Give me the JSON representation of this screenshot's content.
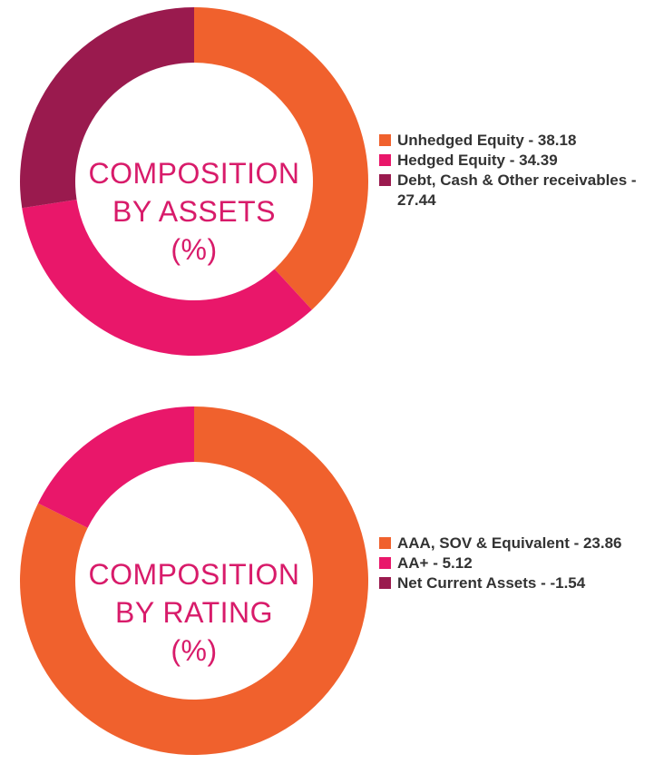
{
  "chart_data": [
    {
      "type": "pie",
      "title": "COMPOSITION BY ASSETS (%)",
      "title_lines": [
        "COMPOSITION",
        "BY ASSETS",
        "(%)"
      ],
      "categories": [
        "Unhedged Equity",
        "Hedged Equity",
        "Debt, Cash & Other receivables"
      ],
      "values": [
        38.18,
        34.39,
        27.44
      ],
      "legend_labels": [
        "Unhedged Equity - 38.18",
        "Hedged Equity - 34.39",
        "Debt, Cash & Other receivables - 27.44"
      ],
      "colors": [
        "#f0612d",
        "#e9176a",
        "#9a1a4e"
      ],
      "legend_position": "right"
    },
    {
      "type": "pie",
      "title": "COMPOSITION BY RATING (%)",
      "title_lines": [
        "COMPOSITION",
        "BY RATING",
        "(%)"
      ],
      "categories": [
        "AAA, SOV & Equivalent",
        "AA+",
        "Net Current Assets"
      ],
      "values": [
        23.86,
        5.12,
        -1.54
      ],
      "legend_labels": [
        "AAA, SOV & Equivalent - 23.86",
        "AA+ - 5.12",
        "Net Current Assets - -1.54"
      ],
      "colors": [
        "#f0612d",
        "#e9176a",
        "#9a1a4e"
      ],
      "legend_position": "right"
    }
  ]
}
